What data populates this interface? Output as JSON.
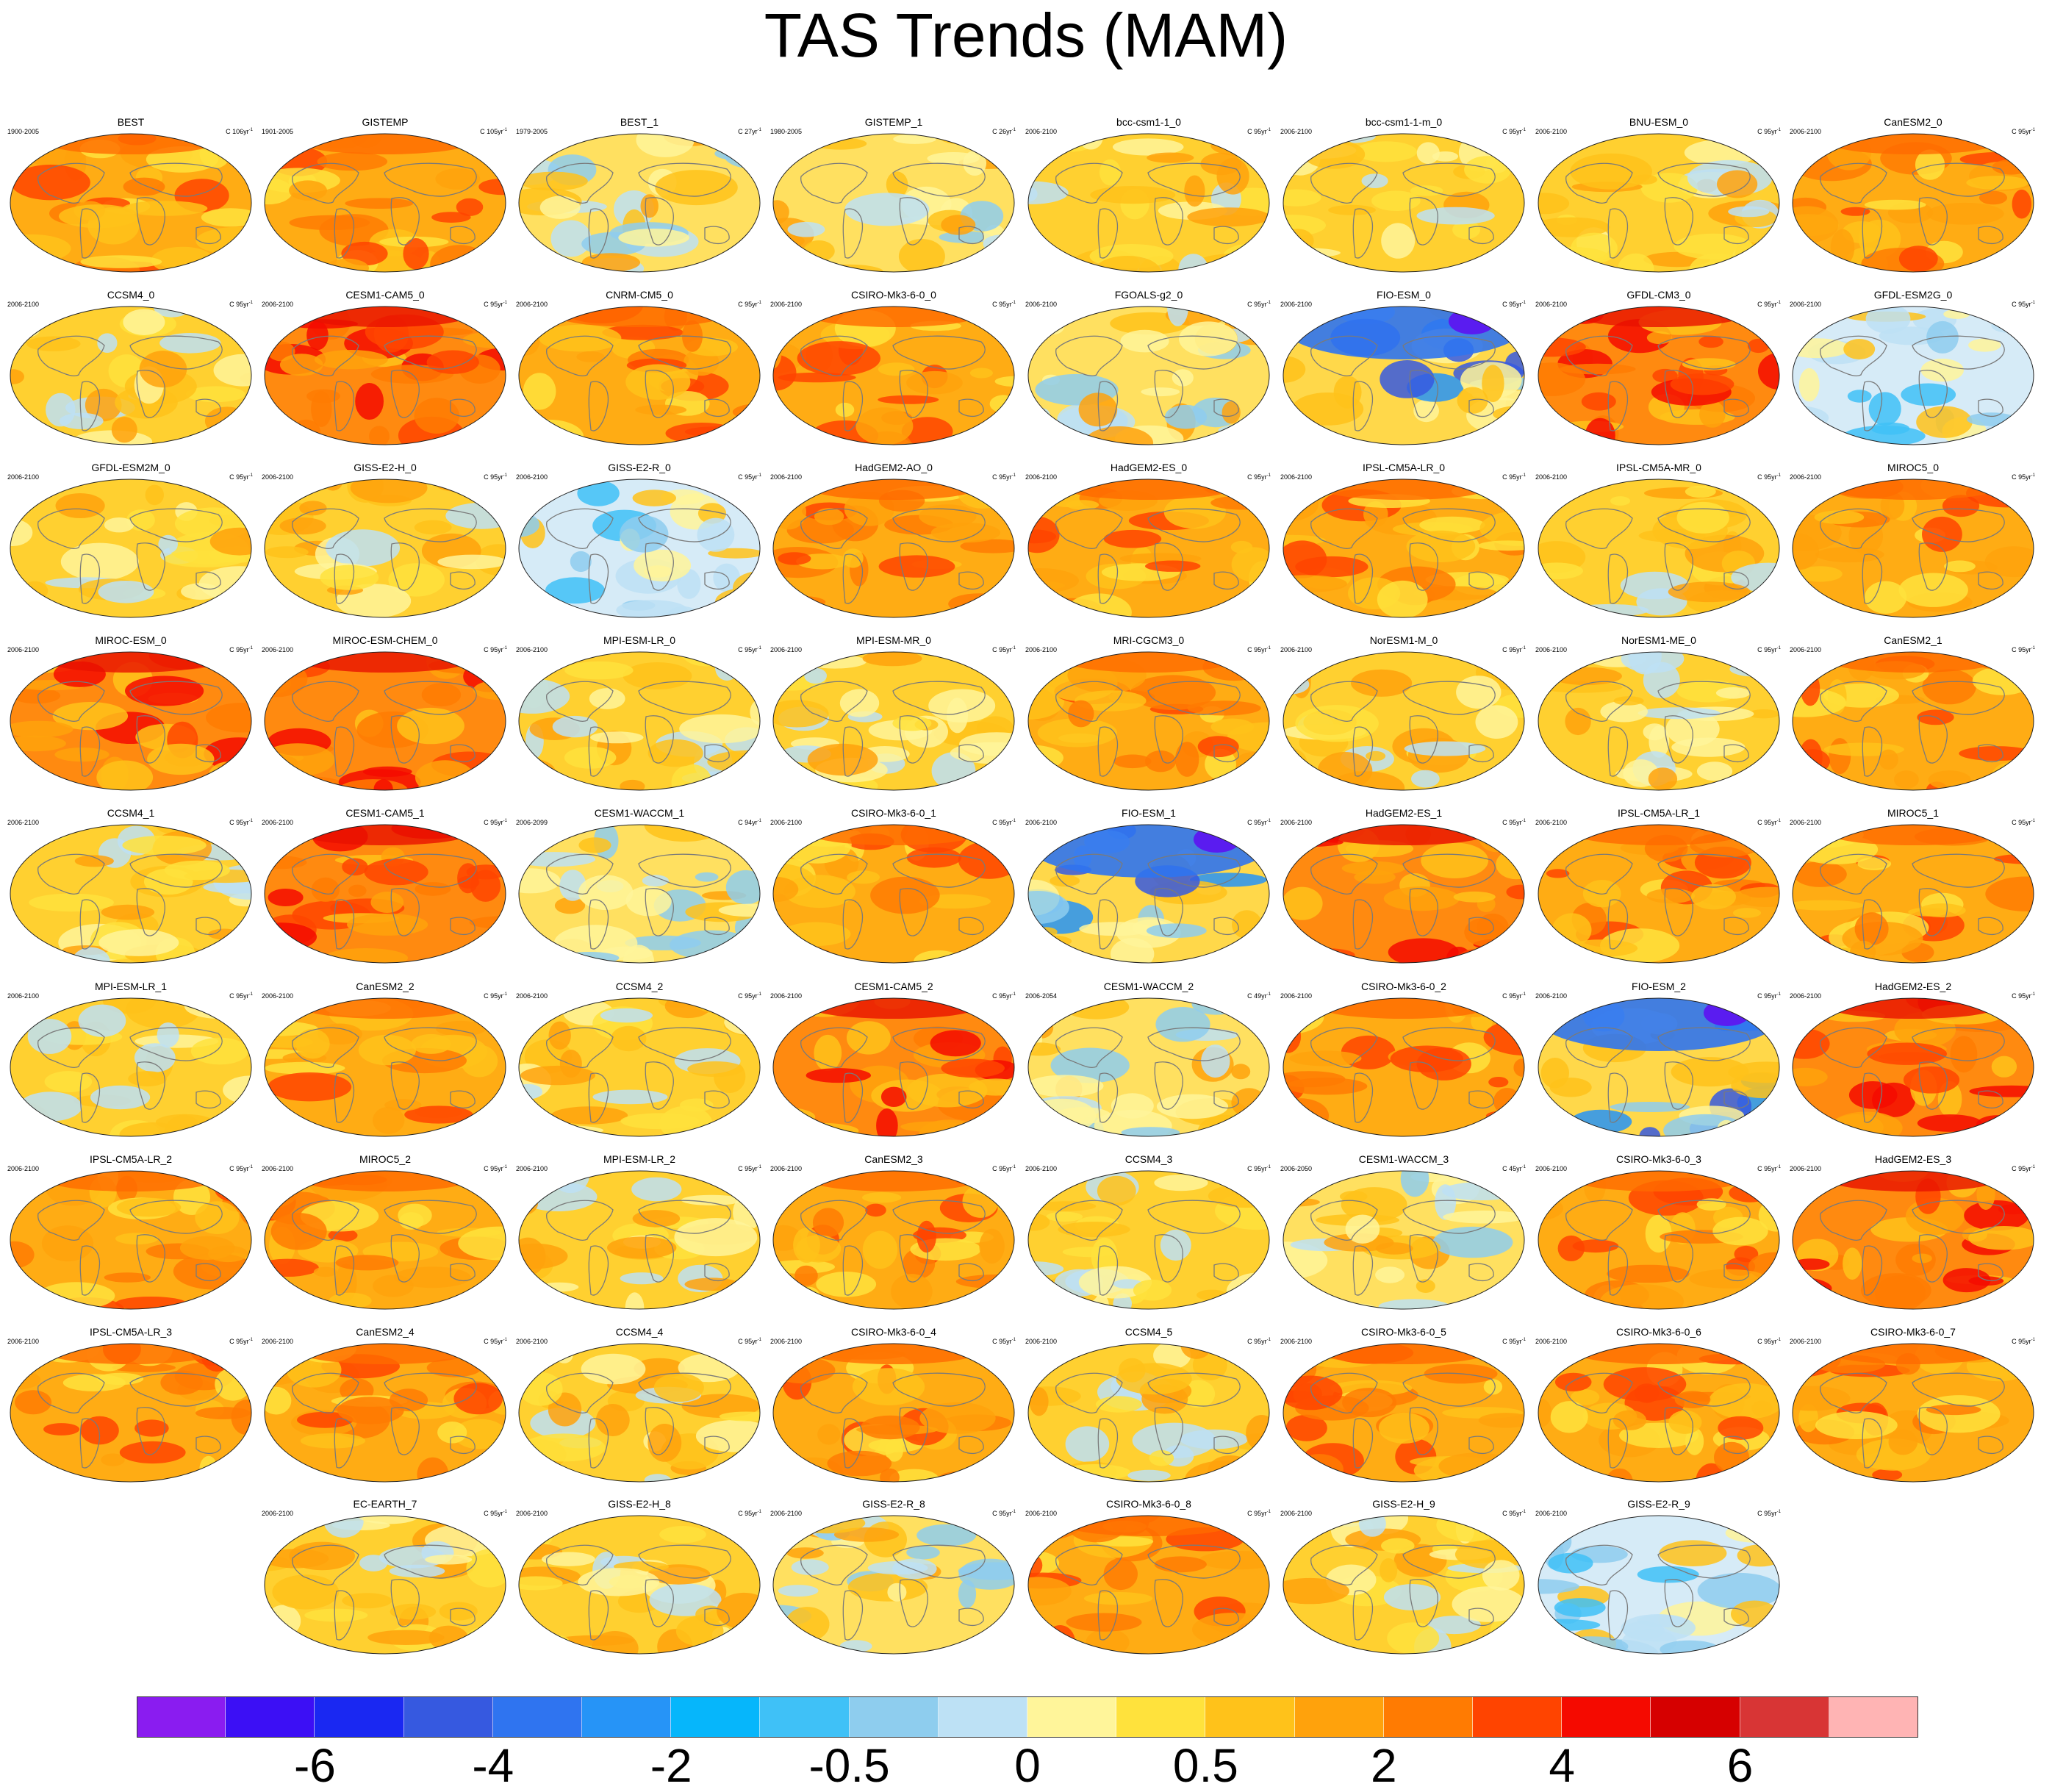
{
  "title": "TAS Trends (MAM)",
  "chart_data": {
    "type": "map-grid",
    "projection": "Robinson (global)",
    "layout": {
      "rows": 9,
      "columns": 8
    },
    "panels": [
      {
        "name": "BEST",
        "period": "1900-2005",
        "units": "C 106yr",
        "tone": "warm"
      },
      {
        "name": "GISTEMP",
        "period": "1901-2005",
        "units": "C 105yr",
        "tone": "warm"
      },
      {
        "name": "BEST_1",
        "period": "1979-2005",
        "units": "C 27yr",
        "tone": "mixed"
      },
      {
        "name": "GISTEMP_1",
        "period": "1980-2005",
        "units": "C 26yr",
        "tone": "mixed"
      },
      {
        "name": "bcc-csm1-1_0",
        "period": "2006-2100",
        "units": "C 95yr",
        "tone": "mild"
      },
      {
        "name": "bcc-csm1-1-m_0",
        "period": "2006-2100",
        "units": "C 95yr",
        "tone": "mild"
      },
      {
        "name": "BNU-ESM_0",
        "period": "2006-2100",
        "units": "C 95yr",
        "tone": "mild"
      },
      {
        "name": "CanESM2_0",
        "period": "2006-2100",
        "units": "C 95yr",
        "tone": "warm"
      },
      {
        "name": "CCSM4_0",
        "period": "2006-2100",
        "units": "C 95yr",
        "tone": "mild"
      },
      {
        "name": "CESM1-CAM5_0",
        "period": "2006-2100",
        "units": "C 95yr",
        "tone": "hot"
      },
      {
        "name": "CNRM-CM5_0",
        "period": "2006-2100",
        "units": "C 95yr",
        "tone": "warm"
      },
      {
        "name": "CSIRO-Mk3-6-0_0",
        "period": "2006-2100",
        "units": "C 95yr",
        "tone": "warm"
      },
      {
        "name": "FGOALS-g2_0",
        "period": "2006-2100",
        "units": "C 95yr",
        "tone": "mixed"
      },
      {
        "name": "FIO-ESM_0",
        "period": "2006-2100",
        "units": "C 95yr",
        "tone": "cold"
      },
      {
        "name": "GFDL-CM3_0",
        "period": "2006-2100",
        "units": "C 95yr",
        "tone": "hot"
      },
      {
        "name": "GFDL-ESM2G_0",
        "period": "2006-2100",
        "units": "C 95yr",
        "tone": "cool"
      },
      {
        "name": "GFDL-ESM2M_0",
        "period": "2006-2100",
        "units": "C 95yr",
        "tone": "mild"
      },
      {
        "name": "GISS-E2-H_0",
        "period": "2006-2100",
        "units": "C 95yr",
        "tone": "mild"
      },
      {
        "name": "GISS-E2-R_0",
        "period": "2006-2100",
        "units": "C 95yr",
        "tone": "cool"
      },
      {
        "name": "HadGEM2-AO_0",
        "period": "2006-2100",
        "units": "C 95yr",
        "tone": "warm"
      },
      {
        "name": "HadGEM2-ES_0",
        "period": "2006-2100",
        "units": "C 95yr",
        "tone": "warm"
      },
      {
        "name": "IPSL-CM5A-LR_0",
        "period": "2006-2100",
        "units": "C 95yr",
        "tone": "warm"
      },
      {
        "name": "IPSL-CM5A-MR_0",
        "period": "2006-2100",
        "units": "C 95yr",
        "tone": "mild"
      },
      {
        "name": "MIROC5_0",
        "period": "2006-2100",
        "units": "C 95yr",
        "tone": "warm"
      },
      {
        "name": "MIROC-ESM_0",
        "period": "2006-2100",
        "units": "C 95yr",
        "tone": "hot"
      },
      {
        "name": "MIROC-ESM-CHEM_0",
        "period": "2006-2100",
        "units": "C 95yr",
        "tone": "hot"
      },
      {
        "name": "MPI-ESM-LR_0",
        "period": "2006-2100",
        "units": "C 95yr",
        "tone": "mild"
      },
      {
        "name": "MPI-ESM-MR_0",
        "period": "2006-2100",
        "units": "C 95yr",
        "tone": "mild"
      },
      {
        "name": "MRI-CGCM3_0",
        "period": "2006-2100",
        "units": "C 95yr",
        "tone": "warm"
      },
      {
        "name": "NorESM1-M_0",
        "period": "2006-2100",
        "units": "C 95yr",
        "tone": "mild"
      },
      {
        "name": "NorESM1-ME_0",
        "period": "2006-2100",
        "units": "C 95yr",
        "tone": "mild"
      },
      {
        "name": "CanESM2_1",
        "period": "2006-2100",
        "units": "C 95yr",
        "tone": "warm"
      },
      {
        "name": "CCSM4_1",
        "period": "2006-2100",
        "units": "C 95yr",
        "tone": "mild"
      },
      {
        "name": "CESM1-CAM5_1",
        "period": "2006-2100",
        "units": "C 95yr",
        "tone": "hot"
      },
      {
        "name": "CESM1-WACCM_1",
        "period": "2006-2099",
        "units": "C 94yr",
        "tone": "mixed"
      },
      {
        "name": "CSIRO-Mk3-6-0_1",
        "period": "2006-2100",
        "units": "C 95yr",
        "tone": "warm"
      },
      {
        "name": "FIO-ESM_1",
        "period": "2006-2100",
        "units": "C 95yr",
        "tone": "cold"
      },
      {
        "name": "HadGEM2-ES_1",
        "period": "2006-2100",
        "units": "C 95yr",
        "tone": "hot"
      },
      {
        "name": "IPSL-CM5A-LR_1",
        "period": "2006-2100",
        "units": "C 95yr",
        "tone": "warm"
      },
      {
        "name": "MIROC5_1",
        "period": "2006-2100",
        "units": "C 95yr",
        "tone": "warm"
      },
      {
        "name": "MPI-ESM-LR_1",
        "period": "2006-2100",
        "units": "C 95yr",
        "tone": "mild"
      },
      {
        "name": "CanESM2_2",
        "period": "2006-2100",
        "units": "C 95yr",
        "tone": "warm"
      },
      {
        "name": "CCSM4_2",
        "period": "2006-2100",
        "units": "C 95yr",
        "tone": "mild"
      },
      {
        "name": "CESM1-CAM5_2",
        "period": "2006-2100",
        "units": "C 95yr",
        "tone": "hot"
      },
      {
        "name": "CESM1-WACCM_2",
        "period": "2006-2054",
        "units": "C 49yr",
        "tone": "mixed"
      },
      {
        "name": "CSIRO-Mk3-6-0_2",
        "period": "2006-2100",
        "units": "C 95yr",
        "tone": "warm"
      },
      {
        "name": "FIO-ESM_2",
        "period": "2006-2100",
        "units": "C 95yr",
        "tone": "cold"
      },
      {
        "name": "HadGEM2-ES_2",
        "period": "2006-2100",
        "units": "C 95yr",
        "tone": "hot"
      },
      {
        "name": "IPSL-CM5A-LR_2",
        "period": "2006-2100",
        "units": "C 95yr",
        "tone": "warm"
      },
      {
        "name": "MIROC5_2",
        "period": "2006-2100",
        "units": "C 95yr",
        "tone": "warm"
      },
      {
        "name": "MPI-ESM-LR_2",
        "period": "2006-2100",
        "units": "C 95yr",
        "tone": "mild"
      },
      {
        "name": "CanESM2_3",
        "period": "2006-2100",
        "units": "C 95yr",
        "tone": "warm"
      },
      {
        "name": "CCSM4_3",
        "period": "2006-2100",
        "units": "C 95yr",
        "tone": "mild"
      },
      {
        "name": "CESM1-WACCM_3",
        "period": "2006-2050",
        "units": "C 45yr",
        "tone": "mixed"
      },
      {
        "name": "CSIRO-Mk3-6-0_3",
        "period": "2006-2100",
        "units": "C 95yr",
        "tone": "warm"
      },
      {
        "name": "HadGEM2-ES_3",
        "period": "2006-2100",
        "units": "C 95yr",
        "tone": "hot"
      },
      {
        "name": "IPSL-CM5A-LR_3",
        "period": "2006-2100",
        "units": "C 95yr",
        "tone": "warm"
      },
      {
        "name": "CanESM2_4",
        "period": "2006-2100",
        "units": "C 95yr",
        "tone": "warm"
      },
      {
        "name": "CCSM4_4",
        "period": "2006-2100",
        "units": "C 95yr",
        "tone": "mild"
      },
      {
        "name": "CSIRO-Mk3-6-0_4",
        "period": "2006-2100",
        "units": "C 95yr",
        "tone": "warm"
      },
      {
        "name": "CCSM4_5",
        "period": "2006-2100",
        "units": "C 95yr",
        "tone": "mild"
      },
      {
        "name": "CSIRO-Mk3-6-0_5",
        "period": "2006-2100",
        "units": "C 95yr",
        "tone": "warm"
      },
      {
        "name": "CSIRO-Mk3-6-0_6",
        "period": "2006-2100",
        "units": "C 95yr",
        "tone": "warm"
      },
      {
        "name": "CSIRO-Mk3-6-0_7",
        "period": "2006-2100",
        "units": "C 95yr",
        "tone": "warm"
      },
      {
        "name": "EC-EARTH_7",
        "period": "2006-2100",
        "units": "C 95yr",
        "tone": "mild"
      },
      {
        "name": "GISS-E2-H_8",
        "period": "2006-2100",
        "units": "C 95yr",
        "tone": "mild"
      },
      {
        "name": "GISS-E2-R_8",
        "period": "2006-2100",
        "units": "C 95yr",
        "tone": "mixed"
      },
      {
        "name": "CSIRO-Mk3-6-0_8",
        "period": "2006-2100",
        "units": "C 95yr",
        "tone": "warm"
      },
      {
        "name": "GISS-E2-H_9",
        "period": "2006-2100",
        "units": "C 95yr",
        "tone": "mild"
      },
      {
        "name": "GISS-E2-R_9",
        "period": "2006-2100",
        "units": "C 95yr",
        "tone": "cool"
      }
    ],
    "colorbar": {
      "colors": [
        "#8a1cf0",
        "#3c0ff5",
        "#1a28f2",
        "#3659e0",
        "#2f74f0",
        "#2694f7",
        "#06b6fb",
        "#3fc1f7",
        "#8ecdee",
        "#bde1f5",
        "#fff59a",
        "#ffe23c",
        "#ffc21a",
        "#ffa20c",
        "#ff7b02",
        "#ff4400",
        "#f50a00",
        "#d60000",
        "#d83535",
        "#ffb4b4"
      ],
      "tick_labels": [
        "-6",
        "-4",
        "-2",
        "-0.5",
        "0",
        "0.5",
        "2",
        "4",
        "6"
      ],
      "tick_boundary_index": [
        2,
        4,
        6,
        8,
        10,
        12,
        14,
        16,
        18
      ]
    }
  }
}
